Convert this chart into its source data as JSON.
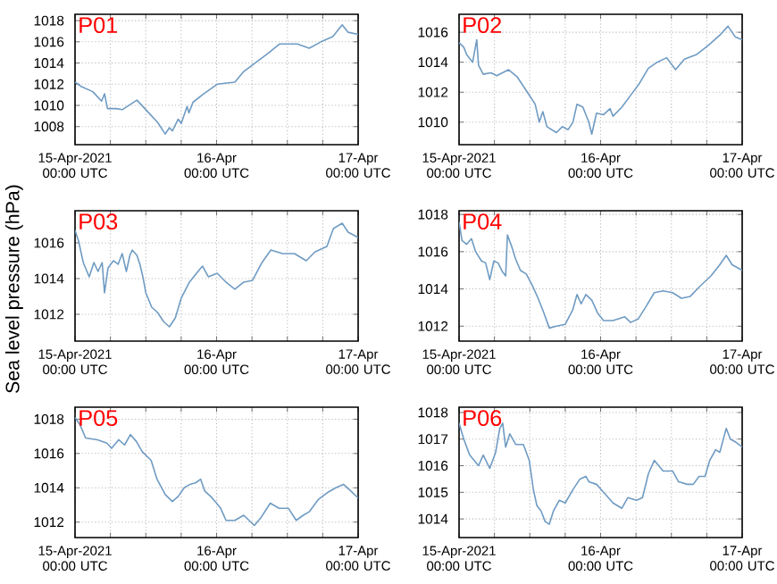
{
  "chart_data": [
    {
      "type": "line",
      "title": "P01",
      "color": "#6f9bc3",
      "grid": true,
      "xlim": [
        "2021-04-15T00:00",
        "2021-04-17T00:00"
      ],
      "ylim": [
        1006.3,
        1018.6
      ],
      "yticks": [
        1008,
        1010,
        1012,
        1014,
        1016,
        1018
      ],
      "xticks": [
        {
          "value": "2021-04-15T00:00",
          "label": "15-Apr-2021 00:00 UTC"
        },
        {
          "value": "2021-04-15T06:00",
          "label": null
        },
        {
          "value": "2021-04-15T12:00",
          "label": null
        },
        {
          "value": "2021-04-15T18:00",
          "label": null
        },
        {
          "value": "2021-04-16T00:00",
          "label": "16-Apr 00:00 UTC"
        },
        {
          "value": "2021-04-16T06:00",
          "label": null
        },
        {
          "value": "2021-04-16T12:00",
          "label": null
        },
        {
          "value": "2021-04-16T18:00",
          "label": null
        },
        {
          "value": "2021-04-17T00:00",
          "label": "17-Apr 00:00 UTC"
        }
      ],
      "x": [
        "2021-04-15T00:00",
        "2021-04-15T01:00",
        "2021-04-15T03:00",
        "2021-04-15T04:30",
        "2021-04-15T05:00",
        "2021-04-15T05:30",
        "2021-04-15T07:00",
        "2021-04-15T08:00",
        "2021-04-15T10:30",
        "2021-04-15T12:30",
        "2021-04-15T14:00",
        "2021-04-15T15:18",
        "2021-04-15T16:00",
        "2021-04-15T16:30",
        "2021-04-15T17:30",
        "2021-04-15T18:00",
        "2021-04-15T19:00",
        "2021-04-15T19:18",
        "2021-04-15T20:00",
        "2021-04-15T21:36",
        "2021-04-16T00:06",
        "2021-04-16T03:06",
        "2021-04-16T04:36",
        "2021-04-16T08:42",
        "2021-04-16T10:42",
        "2021-04-16T13:42",
        "2021-04-16T15:42",
        "2021-04-16T17:42",
        "2021-04-16T19:42",
        "2021-04-16T21:18",
        "2021-04-16T22:18",
        "2021-04-17T00:00"
      ],
      "values": [
        1012.2,
        1011.8,
        1011.3,
        1010.4,
        1011.1,
        1009.7,
        1009.7,
        1009.6,
        1010.5,
        1009.3,
        1008.4,
        1007.3,
        1007.9,
        1007.6,
        1008.7,
        1008.3,
        1009.9,
        1009.3,
        1010.3,
        1011.0,
        1012.0,
        1012.2,
        1013.2,
        1014.9,
        1015.8,
        1015.8,
        1015.4,
        1016.0,
        1016.5,
        1017.6,
        1016.9,
        1016.7
      ]
    },
    {
      "type": "line",
      "title": "P02",
      "color": "#6f9bc3",
      "grid": true,
      "xlim": [
        "2021-04-15T00:00",
        "2021-04-17T00:00"
      ],
      "ylim": [
        1008.5,
        1017.2
      ],
      "yticks": [
        1010,
        1012,
        1014,
        1016
      ],
      "xticks": [
        {
          "value": "2021-04-15T00:00",
          "label": "15-Apr-2021 00:00 UTC"
        },
        {
          "value": "2021-04-15T06:00",
          "label": null
        },
        {
          "value": "2021-04-15T12:00",
          "label": null
        },
        {
          "value": "2021-04-15T18:00",
          "label": null
        },
        {
          "value": "2021-04-16T00:00",
          "label": "16-Apr 00:00 UTC"
        },
        {
          "value": "2021-04-16T06:00",
          "label": null
        },
        {
          "value": "2021-04-16T12:00",
          "label": null
        },
        {
          "value": "2021-04-16T18:00",
          "label": null
        },
        {
          "value": "2021-04-17T00:00",
          "label": "17-Apr 00:00 UTC"
        }
      ],
      "x": [
        "2021-04-15T00:00",
        "2021-04-15T00:48",
        "2021-04-15T01:18",
        "2021-04-15T02:18",
        "2021-04-15T03:00",
        "2021-04-15T03:18",
        "2021-04-15T04:06",
        "2021-04-15T05:24",
        "2021-04-15T06:24",
        "2021-04-15T08:24",
        "2021-04-15T09:54",
        "2021-04-15T11:24",
        "2021-04-15T12:54",
        "2021-04-15T13:36",
        "2021-04-15T14:12",
        "2021-04-15T14:54",
        "2021-04-15T16:30",
        "2021-04-15T17:30",
        "2021-04-15T18:30",
        "2021-04-15T19:18",
        "2021-04-15T20:00",
        "2021-04-15T21:00",
        "2021-04-15T22:00",
        "2021-04-15T22:30",
        "2021-04-15T23:18",
        "2021-04-16T00:30",
        "2021-04-16T01:36",
        "2021-04-16T02:06",
        "2021-04-16T03:36",
        "2021-04-16T05:06",
        "2021-04-16T06:36",
        "2021-04-16T08:06",
        "2021-04-16T09:36",
        "2021-04-16T11:12",
        "2021-04-16T12:42",
        "2021-04-16T14:12",
        "2021-04-16T16:12",
        "2021-04-16T18:12",
        "2021-04-16T20:12",
        "2021-04-16T21:36",
        "2021-04-16T22:48",
        "2021-04-17T00:00"
      ],
      "values": [
        1015.3,
        1015.0,
        1014.5,
        1014.0,
        1015.5,
        1013.8,
        1013.2,
        1013.3,
        1013.1,
        1013.5,
        1013.0,
        1012.1,
        1011.2,
        1010.0,
        1010.7,
        1009.7,
        1009.3,
        1009.7,
        1009.5,
        1010.0,
        1011.2,
        1011.0,
        1010.0,
        1009.2,
        1010.6,
        1010.5,
        1010.9,
        1010.4,
        1011.0,
        1011.8,
        1012.6,
        1013.6,
        1014.0,
        1014.3,
        1013.5,
        1014.2,
        1014.5,
        1015.1,
        1015.8,
        1016.4,
        1015.7,
        1015.5
      ]
    },
    {
      "type": "line",
      "title": "P03",
      "ylabel": "Sea level pressure (hPa)",
      "color": "#6f9bc3",
      "grid": true,
      "xlim": [
        "2021-04-15T00:00",
        "2021-04-17T00:00"
      ],
      "ylim": [
        1010.5,
        1017.8
      ],
      "yticks": [
        1012,
        1014,
        1016
      ],
      "xticks": [
        {
          "value": "2021-04-15T00:00",
          "label": "15-Apr-2021 00:00 UTC"
        },
        {
          "value": "2021-04-15T06:00",
          "label": null
        },
        {
          "value": "2021-04-15T12:00",
          "label": null
        },
        {
          "value": "2021-04-15T18:00",
          "label": null
        },
        {
          "value": "2021-04-16T00:00",
          "label": "16-Apr 00:00 UTC"
        },
        {
          "value": "2021-04-16T06:00",
          "label": null
        },
        {
          "value": "2021-04-16T12:00",
          "label": null
        },
        {
          "value": "2021-04-16T18:00",
          "label": null
        },
        {
          "value": "2021-04-17T00:00",
          "label": "17-Apr 00:00 UTC"
        }
      ],
      "x": [
        "2021-04-15T00:00",
        "2021-04-15T00:36",
        "2021-04-15T01:24",
        "2021-04-15T02:24",
        "2021-04-15T03:12",
        "2021-04-15T03:54",
        "2021-04-15T04:36",
        "2021-04-15T05:00",
        "2021-04-15T05:36",
        "2021-04-15T06:30",
        "2021-04-15T07:18",
        "2021-04-15T08:00",
        "2021-04-15T08:42",
        "2021-04-15T09:18",
        "2021-04-15T09:42",
        "2021-04-15T10:30",
        "2021-04-15T11:00",
        "2021-04-15T11:30",
        "2021-04-15T12:00",
        "2021-04-15T13:00",
        "2021-04-15T14:00",
        "2021-04-15T15:00",
        "2021-04-15T16:00",
        "2021-04-15T17:00",
        "2021-04-15T18:00",
        "2021-04-15T19:24",
        "2021-04-15T20:36",
        "2021-04-15T21:36",
        "2021-04-15T22:36",
        "2021-04-16T00:06",
        "2021-04-16T01:36",
        "2021-04-16T03:06",
        "2021-04-16T04:36",
        "2021-04-16T06:06",
        "2021-04-16T07:42",
        "2021-04-16T09:12",
        "2021-04-16T11:12",
        "2021-04-16T13:12",
        "2021-04-16T15:12",
        "2021-04-16T16:42",
        "2021-04-16T18:42",
        "2021-04-16T19:48",
        "2021-04-16T21:18",
        "2021-04-16T22:18",
        "2021-04-17T00:00"
      ],
      "values": [
        1016.7,
        1016.1,
        1014.9,
        1014.1,
        1014.9,
        1014.4,
        1014.9,
        1013.2,
        1014.6,
        1015.0,
        1014.8,
        1015.4,
        1014.4,
        1015.3,
        1015.6,
        1015.3,
        1014.8,
        1014.1,
        1013.2,
        1012.4,
        1012.1,
        1011.6,
        1011.3,
        1011.8,
        1012.9,
        1013.8,
        1014.3,
        1014.7,
        1014.1,
        1014.3,
        1013.8,
        1013.4,
        1013.8,
        1013.9,
        1014.9,
        1015.6,
        1015.4,
        1015.4,
        1015.0,
        1015.5,
        1015.8,
        1016.8,
        1017.1,
        1016.6,
        1016.3
      ]
    },
    {
      "type": "line",
      "title": "P04",
      "color": "#6f9bc3",
      "grid": true,
      "xlim": [
        "2021-04-15T00:00",
        "2021-04-17T00:00"
      ],
      "ylim": [
        1011.2,
        1018.2
      ],
      "yticks": [
        1012,
        1014,
        1016,
        1018
      ],
      "xticks": [
        {
          "value": "2021-04-15T00:00",
          "label": "15-Apr-2021 00:00 UTC"
        },
        {
          "value": "2021-04-15T06:00",
          "label": null
        },
        {
          "value": "2021-04-15T12:00",
          "label": null
        },
        {
          "value": "2021-04-15T18:00",
          "label": null
        },
        {
          "value": "2021-04-16T00:00",
          "label": "16-Apr 00:00 UTC"
        },
        {
          "value": "2021-04-16T06:00",
          "label": null
        },
        {
          "value": "2021-04-16T12:00",
          "label": null
        },
        {
          "value": "2021-04-16T18:00",
          "label": null
        },
        {
          "value": "2021-04-17T00:00",
          "label": "17-Apr 00:00 UTC"
        }
      ],
      "x": [
        "2021-04-15T00:00",
        "2021-04-15T00:30",
        "2021-04-15T01:18",
        "2021-04-15T02:06",
        "2021-04-15T02:48",
        "2021-04-15T03:48",
        "2021-04-15T04:30",
        "2021-04-15T05:12",
        "2021-04-15T05:54",
        "2021-04-15T06:36",
        "2021-04-15T07:24",
        "2021-04-15T07:54",
        "2021-04-15T08:12",
        "2021-04-15T08:54",
        "2021-04-15T09:36",
        "2021-04-15T10:24",
        "2021-04-15T11:24",
        "2021-04-15T12:24",
        "2021-04-15T13:24",
        "2021-04-15T14:24",
        "2021-04-15T15:18",
        "2021-04-15T16:30",
        "2021-04-15T18:00",
        "2021-04-15T19:18",
        "2021-04-15T20:00",
        "2021-04-15T20:42",
        "2021-04-15T21:30",
        "2021-04-15T22:30",
        "2021-04-15T23:30",
        "2021-04-16T00:30",
        "2021-04-16T02:06",
        "2021-04-16T04:06",
        "2021-04-16T05:06",
        "2021-04-16T06:24",
        "2021-04-16T07:36",
        "2021-04-16T09:06",
        "2021-04-16T10:36",
        "2021-04-16T12:12",
        "2021-04-16T13:42",
        "2021-04-16T15:12",
        "2021-04-16T16:42",
        "2021-04-16T18:42",
        "2021-04-16T20:12",
        "2021-04-16T21:18",
        "2021-04-16T22:18",
        "2021-04-17T00:00"
      ],
      "values": [
        1017.6,
        1016.6,
        1016.4,
        1016.7,
        1016.0,
        1015.5,
        1015.4,
        1014.5,
        1015.5,
        1015.4,
        1014.9,
        1014.7,
        1016.9,
        1016.3,
        1015.6,
        1015.0,
        1014.8,
        1014.2,
        1013.5,
        1012.7,
        1011.9,
        1012.0,
        1012.1,
        1012.9,
        1013.7,
        1013.2,
        1013.7,
        1013.4,
        1012.7,
        1012.3,
        1012.3,
        1012.5,
        1012.2,
        1012.4,
        1013.0,
        1013.8,
        1013.9,
        1013.8,
        1013.5,
        1013.6,
        1014.1,
        1014.7,
        1015.3,
        1015.8,
        1015.3,
        1015.0
      ]
    },
    {
      "type": "line",
      "title": "P05",
      "color": "#6f9bc3",
      "grid": true,
      "xlim": [
        "2021-04-15T00:00",
        "2021-04-17T00:00"
      ],
      "ylim": [
        1011.1,
        1018.7
      ],
      "yticks": [
        1012,
        1014,
        1016,
        1018
      ],
      "xticks": [
        {
          "value": "2021-04-15T00:00",
          "label": "15-Apr-2021 00:00 UTC"
        },
        {
          "value": "2021-04-15T06:00",
          "label": null
        },
        {
          "value": "2021-04-15T12:00",
          "label": null
        },
        {
          "value": "2021-04-15T18:00",
          "label": null
        },
        {
          "value": "2021-04-16T00:00",
          "label": "16-Apr 00:00 UTC"
        },
        {
          "value": "2021-04-16T06:00",
          "label": null
        },
        {
          "value": "2021-04-16T12:00",
          "label": null
        },
        {
          "value": "2021-04-16T18:00",
          "label": null
        },
        {
          "value": "2021-04-17T00:00",
          "label": "17-Apr 00:00 UTC"
        }
      ],
      "x": [
        "2021-04-15T00:00",
        "2021-04-15T00:48",
        "2021-04-15T01:48",
        "2021-04-15T03:48",
        "2021-04-15T05:24",
        "2021-04-15T06:12",
        "2021-04-15T07:24",
        "2021-04-15T08:24",
        "2021-04-15T09:24",
        "2021-04-15T10:24",
        "2021-04-15T11:24",
        "2021-04-15T12:54",
        "2021-04-15T13:54",
        "2021-04-15T15:18",
        "2021-04-15T16:30",
        "2021-04-15T17:30",
        "2021-04-15T18:30",
        "2021-04-15T19:30",
        "2021-04-15T20:30",
        "2021-04-15T21:18",
        "2021-04-15T22:00",
        "2021-04-15T23:00",
        "2021-04-16T00:00",
        "2021-04-16T00:42",
        "2021-04-16T01:36",
        "2021-04-16T03:06",
        "2021-04-16T04:36",
        "2021-04-16T06:24",
        "2021-04-16T07:36",
        "2021-04-16T09:06",
        "2021-04-16T10:36",
        "2021-04-16T12:12",
        "2021-04-16T13:30",
        "2021-04-16T14:42",
        "2021-04-16T15:42",
        "2021-04-16T17:12",
        "2021-04-16T18:42",
        "2021-04-16T20:12",
        "2021-04-16T21:30",
        "2021-04-16T22:48",
        "2021-04-17T00:00"
      ],
      "values": [
        1018.1,
        1017.7,
        1016.9,
        1016.8,
        1016.6,
        1016.3,
        1016.8,
        1016.5,
        1017.1,
        1016.7,
        1016.1,
        1015.6,
        1014.5,
        1013.6,
        1013.2,
        1013.5,
        1014.0,
        1014.2,
        1014.3,
        1014.5,
        1013.8,
        1013.5,
        1013.1,
        1012.8,
        1012.1,
        1012.1,
        1012.4,
        1011.8,
        1012.3,
        1013.1,
        1012.8,
        1012.8,
        1012.1,
        1012.4,
        1012.6,
        1013.3,
        1013.7,
        1014.0,
        1014.2,
        1013.8,
        1013.4
      ]
    },
    {
      "type": "line",
      "title": "P06",
      "color": "#6f9bc3",
      "grid": true,
      "xlim": [
        "2021-04-15T00:00",
        "2021-04-17T00:00"
      ],
      "ylim": [
        1013.3,
        1018.2
      ],
      "yticks": [
        1014,
        1015,
        1016,
        1017,
        1018
      ],
      "xticks": [
        {
          "value": "2021-04-15T00:00",
          "label": "15-Apr-2021 00:00 UTC"
        },
        {
          "value": "2021-04-15T06:00",
          "label": null
        },
        {
          "value": "2021-04-15T12:00",
          "label": null
        },
        {
          "value": "2021-04-15T18:00",
          "label": null
        },
        {
          "value": "2021-04-16T00:00",
          "label": "16-Apr 00:00 UTC"
        },
        {
          "value": "2021-04-16T06:00",
          "label": null
        },
        {
          "value": "2021-04-16T12:00",
          "label": null
        },
        {
          "value": "2021-04-16T18:00",
          "label": null
        },
        {
          "value": "2021-04-17T00:00",
          "label": "17-Apr 00:00 UTC"
        }
      ],
      "x": [
        "2021-04-15T00:00",
        "2021-04-15T00:48",
        "2021-04-15T01:48",
        "2021-04-15T03:18",
        "2021-04-15T04:06",
        "2021-04-15T05:12",
        "2021-04-15T06:12",
        "2021-04-15T06:54",
        "2021-04-15T07:24",
        "2021-04-15T07:54",
        "2021-04-15T08:36",
        "2021-04-15T09:36",
        "2021-04-15T10:54",
        "2021-04-15T11:54",
        "2021-04-15T12:36",
        "2021-04-15T13:12",
        "2021-04-15T13:54",
        "2021-04-15T14:36",
        "2021-04-15T15:18",
        "2021-04-15T16:00",
        "2021-04-15T17:00",
        "2021-04-15T18:00",
        "2021-04-15T19:18",
        "2021-04-15T20:30",
        "2021-04-15T21:30",
        "2021-04-15T22:00",
        "2021-04-15T23:18",
        "2021-04-16T00:30",
        "2021-04-16T02:06",
        "2021-04-16T03:36",
        "2021-04-16T04:36",
        "2021-04-16T06:06",
        "2021-04-16T07:06",
        "2021-04-16T08:06",
        "2021-04-16T09:06",
        "2021-04-16T10:36",
        "2021-04-16T12:12",
        "2021-04-16T13:12",
        "2021-04-16T14:42",
        "2021-04-16T15:42",
        "2021-04-16T16:42",
        "2021-04-16T17:42",
        "2021-04-16T18:30",
        "2021-04-16T19:30",
        "2021-04-16T20:12",
        "2021-04-16T21:18",
        "2021-04-16T22:00",
        "2021-04-16T22:48",
        "2021-04-17T00:00"
      ],
      "values": [
        1017.6,
        1017.0,
        1016.4,
        1016.0,
        1016.4,
        1015.9,
        1016.5,
        1017.4,
        1017.6,
        1016.7,
        1017.2,
        1016.8,
        1016.8,
        1016.2,
        1015.1,
        1014.5,
        1014.3,
        1013.9,
        1013.8,
        1014.3,
        1014.7,
        1014.6,
        1015.1,
        1015.5,
        1015.6,
        1015.4,
        1015.3,
        1015.0,
        1014.6,
        1014.4,
        1014.8,
        1014.7,
        1014.8,
        1015.7,
        1016.2,
        1015.8,
        1015.8,
        1015.4,
        1015.3,
        1015.3,
        1015.6,
        1015.6,
        1016.2,
        1016.6,
        1016.5,
        1017.4,
        1017.0,
        1016.9,
        1016.7
      ]
    }
  ]
}
